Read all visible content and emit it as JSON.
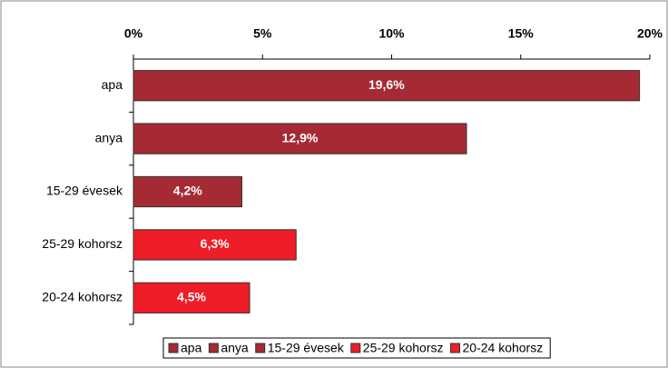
{
  "chart_data": {
    "type": "bar",
    "orientation": "horizontal",
    "categories": [
      "apa",
      "anya",
      "15-29 évesek",
      "25-29 kohorsz",
      "20-24 kohorsz"
    ],
    "values": [
      19.6,
      12.9,
      4.2,
      6.3,
      4.5
    ],
    "value_labels": [
      "19,6%",
      "12,9%",
      "4,2%",
      "6,3%",
      "4,5%"
    ],
    "colors": [
      "#a62a34",
      "#a62a34",
      "#a62a34",
      "#ee1d27",
      "#ee1d27"
    ],
    "xlim": [
      0,
      20
    ],
    "xticks": [
      {
        "value": 0,
        "label": "0%"
      },
      {
        "value": 5,
        "label": "5%"
      },
      {
        "value": 10,
        "label": "10%"
      },
      {
        "value": 15,
        "label": "15%"
      },
      {
        "value": 20,
        "label": "20%"
      }
    ],
    "grid": false,
    "legend": "bottom"
  }
}
